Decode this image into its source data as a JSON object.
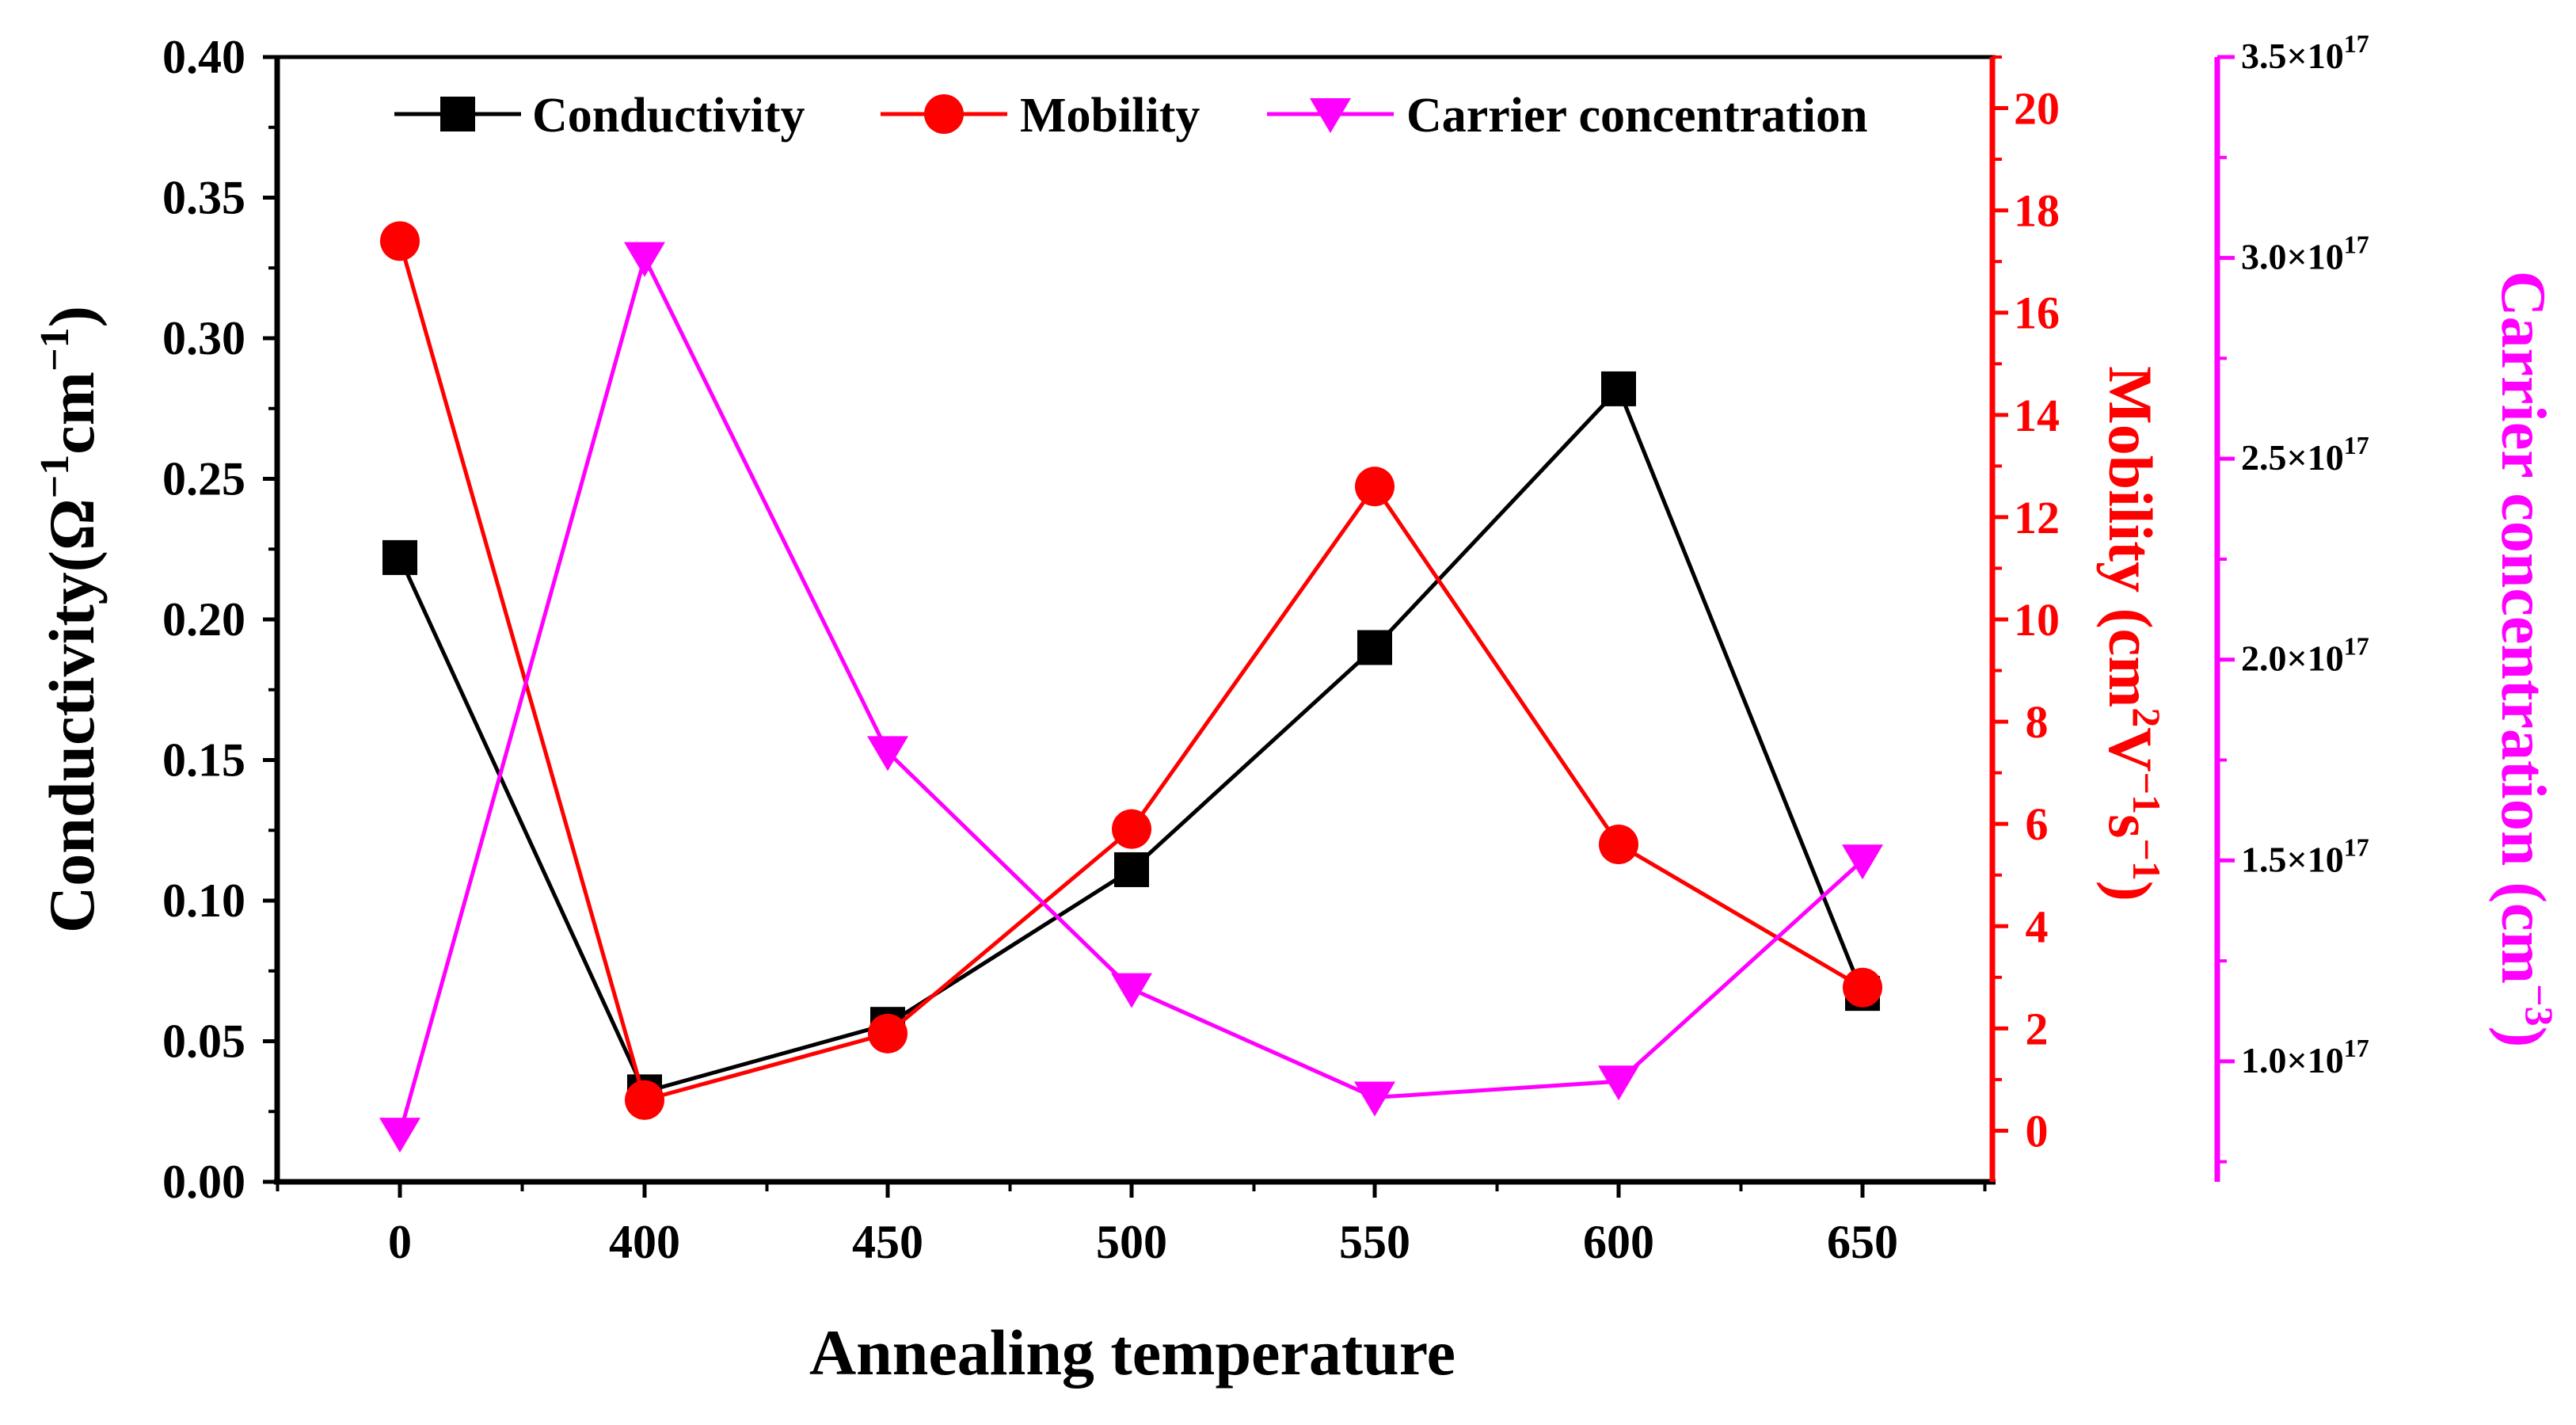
{
  "chart_data": {
    "type": "line",
    "categories": [
      "0",
      "400",
      "450",
      "500",
      "550",
      "600",
      "650"
    ],
    "xlabel": "Annealing temperature",
    "axes": {
      "left": {
        "label_main": "Conductivity(Ω",
        "label_sup1": "−1",
        "label_mid": "cm",
        "label_sup2": "−1",
        "label_end": ")",
        "ylim": [
          0,
          0.4
        ],
        "ticks": [
          "0.00",
          "0.05",
          "0.10",
          "0.15",
          "0.20",
          "0.25",
          "0.30",
          "0.35",
          "0.40"
        ]
      },
      "right1": {
        "label_main": "Mobility (cm",
        "label_sup1": "2",
        "label_mid1": "V",
        "label_sup2": "−1",
        "label_mid2": "s",
        "label_sup3": "−1",
        "label_end": ")",
        "ylim": [
          -1,
          21
        ],
        "ticks": [
          "0",
          "2",
          "4",
          "6",
          "8",
          "10",
          "12",
          "14",
          "16",
          "18",
          "20"
        ]
      },
      "right2": {
        "label_main": "Carrier concentration (cm",
        "label_sup": "−3",
        "label_end": ")",
        "ylim": [
          7e+16,
          3.5e+17
        ],
        "ticks": [
          {
            "mant": "1.0×10",
            "exp": "17"
          },
          {
            "mant": "1.5×10",
            "exp": "17"
          },
          {
            "mant": "2.0×10",
            "exp": "17"
          },
          {
            "mant": "2.5×10",
            "exp": "17"
          },
          {
            "mant": "3.0×10",
            "exp": "17"
          },
          {
            "mant": "3.5×10",
            "exp": "17"
          }
        ]
      }
    },
    "series": [
      {
        "name": "Conductivity",
        "axis": "left",
        "color": "#000000",
        "marker": "square",
        "values": [
          0.222,
          0.032,
          0.056,
          0.111,
          0.19,
          0.282,
          0.067
        ]
      },
      {
        "name": "Mobility",
        "axis": "right1",
        "color": "#ff0000",
        "marker": "circle",
        "values": [
          17.4,
          0.6,
          1.9,
          5.9,
          12.6,
          5.6,
          2.8
        ]
      },
      {
        "name": "Carrier concentration",
        "axis": "right2",
        "color": "#ff00ff",
        "marker": "triangle-down",
        "values": [
          8.2e+16,
          3e+17,
          1.77e+17,
          1.18e+17,
          9.1e+16,
          9.5e+16,
          1.5e+17
        ]
      }
    ],
    "legend": [
      "Conductivity",
      "Mobility",
      "Carrier concentration"
    ],
    "legend_position": "top"
  }
}
